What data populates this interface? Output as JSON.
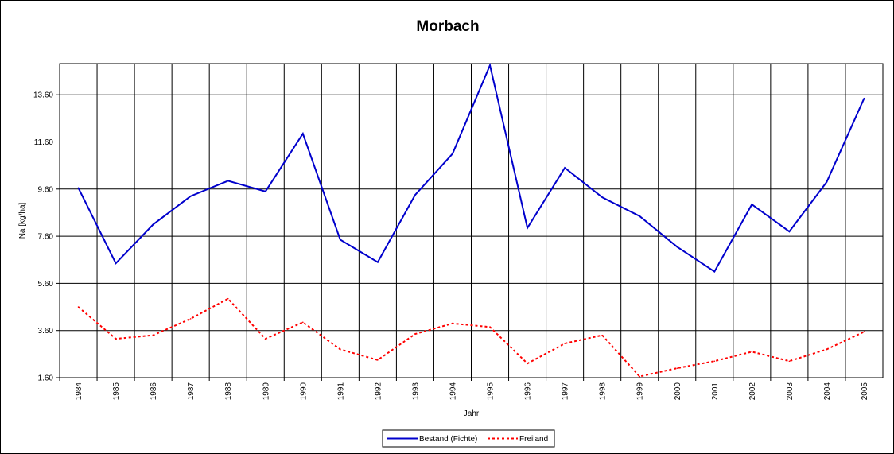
{
  "chart_data": {
    "type": "line",
    "title": "Morbach",
    "xlabel": "Jahr",
    "ylabel": "Na [kg/ha]",
    "categories": [
      "1984",
      "1985",
      "1986",
      "1987",
      "1988",
      "1989",
      "1990",
      "1991",
      "1992",
      "1993",
      "1994",
      "1995",
      "1996",
      "1997",
      "1998",
      "1999",
      "2000",
      "2001",
      "2002",
      "2003",
      "2004",
      "2005"
    ],
    "yticks": [
      "1.60",
      "3.60",
      "5.60",
      "7.60",
      "9.60",
      "11.60",
      "13.60"
    ],
    "ylim": [
      1.6,
      14.8
    ],
    "grid": true,
    "legend_position": "bottom",
    "series": [
      {
        "name": "Bestand (Fichte)",
        "color": "#0000cc",
        "style": "solid",
        "values": [
          9.65,
          6.45,
          8.1,
          9.3,
          9.95,
          9.5,
          11.95,
          7.45,
          6.5,
          9.35,
          11.1,
          14.85,
          7.95,
          10.5,
          9.25,
          8.45,
          7.15,
          6.1,
          8.95,
          7.8,
          9.9,
          13.45
        ]
      },
      {
        "name": "Freiland",
        "color": "#ff0000",
        "style": "dotted",
        "values": [
          4.6,
          3.25,
          3.4,
          4.1,
          4.95,
          3.25,
          3.95,
          2.8,
          2.35,
          3.45,
          3.9,
          3.75,
          2.2,
          3.05,
          3.4,
          1.65,
          2.0,
          2.3,
          2.7,
          2.3,
          2.8,
          3.55
        ]
      }
    ]
  }
}
